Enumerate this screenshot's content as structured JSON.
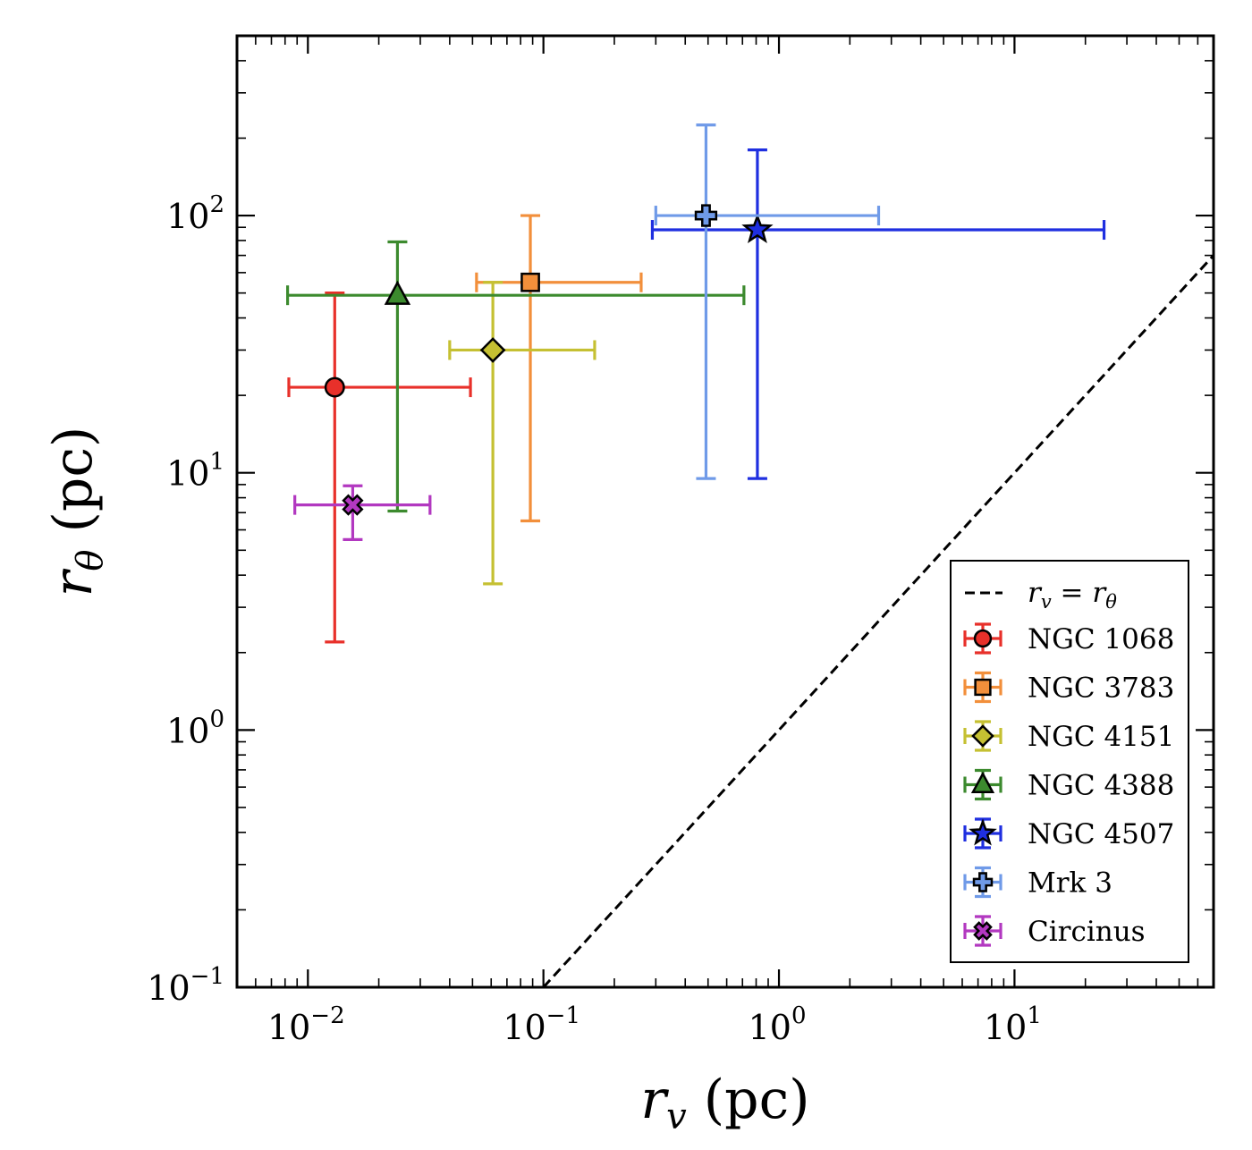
{
  "chart_data": {
    "type": "scatter",
    "title": "",
    "xlabel": {
      "var": "r",
      "sub": "v",
      "unit": "(pc)"
    },
    "ylabel": {
      "var": "r",
      "sub": "θ",
      "unit": "(pc)"
    },
    "xscale": "log",
    "yscale": "log",
    "xlim": [
      0.005,
      70
    ],
    "ylim": [
      0.1,
      500
    ],
    "x_ticks": [
      {
        "base": "10",
        "exp": "−2",
        "value": 0.01
      },
      {
        "base": "10",
        "exp": "−1",
        "value": 0.1
      },
      {
        "base": "10",
        "exp": "0",
        "value": 1
      },
      {
        "base": "10",
        "exp": "1",
        "value": 10
      }
    ],
    "y_ticks": [
      {
        "base": "10",
        "exp": "−1",
        "value": 0.1
      },
      {
        "base": "10",
        "exp": "0",
        "value": 1
      },
      {
        "base": "10",
        "exp": "1",
        "value": 10
      },
      {
        "base": "10",
        "exp": "2",
        "value": 100
      }
    ],
    "reference_line": {
      "label": {
        "lhs": "r",
        "lhs_sub": "v",
        "op": "=",
        "rhs": "r",
        "rhs_sub": "θ"
      },
      "style": "dashed",
      "color": "#000000",
      "relation": "y = x"
    },
    "legend_position": "lower-right",
    "series": [
      {
        "name": "NGC 1068",
        "color": "#e8302a",
        "marker": "circle",
        "x": 0.013,
        "x_err": [
          0.0083,
          0.049
        ],
        "y": 21.5,
        "y_err": [
          2.2,
          50
        ]
      },
      {
        "name": "NGC 3783",
        "color": "#f28f3b",
        "marker": "square",
        "x": 0.088,
        "x_err": [
          0.052,
          0.26
        ],
        "y": 55,
        "y_err": [
          6.5,
          100
        ]
      },
      {
        "name": "NGC 4151",
        "color": "#c5c032",
        "marker": "diamond",
        "x": 0.061,
        "x_err": [
          0.04,
          0.165
        ],
        "y": 30,
        "y_err": [
          3.7,
          55
        ]
      },
      {
        "name": "NGC 4388",
        "color": "#3c8a2e",
        "marker": "triangle",
        "x": 0.024,
        "x_err": [
          0.0082,
          0.71
        ],
        "y": 49,
        "y_err": [
          7.1,
          79
        ]
      },
      {
        "name": "NGC 4507",
        "color": "#1f2fe0",
        "marker": "star",
        "x": 0.81,
        "x_err": [
          0.29,
          24
        ],
        "y": 88,
        "y_err": [
          9.5,
          180
        ]
      },
      {
        "name": "Mrk 3",
        "color": "#6f9ae8",
        "marker": "plus",
        "x": 0.49,
        "x_err": [
          0.3,
          2.65
        ],
        "y": 100,
        "y_err": [
          9.5,
          225
        ]
      },
      {
        "name": "Circinus",
        "color": "#b238c0",
        "marker": "x",
        "x": 0.0155,
        "x_err": [
          0.0088,
          0.033
        ],
        "y": 7.5,
        "y_err": [
          5.5,
          8.9
        ]
      }
    ]
  }
}
